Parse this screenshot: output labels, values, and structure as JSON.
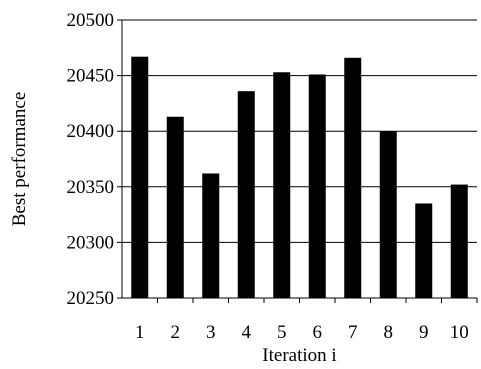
{
  "chart_data": {
    "type": "bar",
    "categories": [
      "1",
      "2",
      "3",
      "4",
      "5",
      "6",
      "7",
      "8",
      "9",
      "10"
    ],
    "values": [
      20467,
      20413,
      20362,
      20436,
      20453,
      20451,
      20466,
      20400,
      20335,
      20352
    ],
    "title": "",
    "xlabel": "Iteration i",
    "ylabel": "Best performance",
    "ylim": [
      20250,
      20500
    ],
    "yticks": [
      20250,
      20300,
      20350,
      20400,
      20450,
      20500
    ],
    "grid": true,
    "bar_color": "#000000",
    "grid_color": "#000000"
  }
}
